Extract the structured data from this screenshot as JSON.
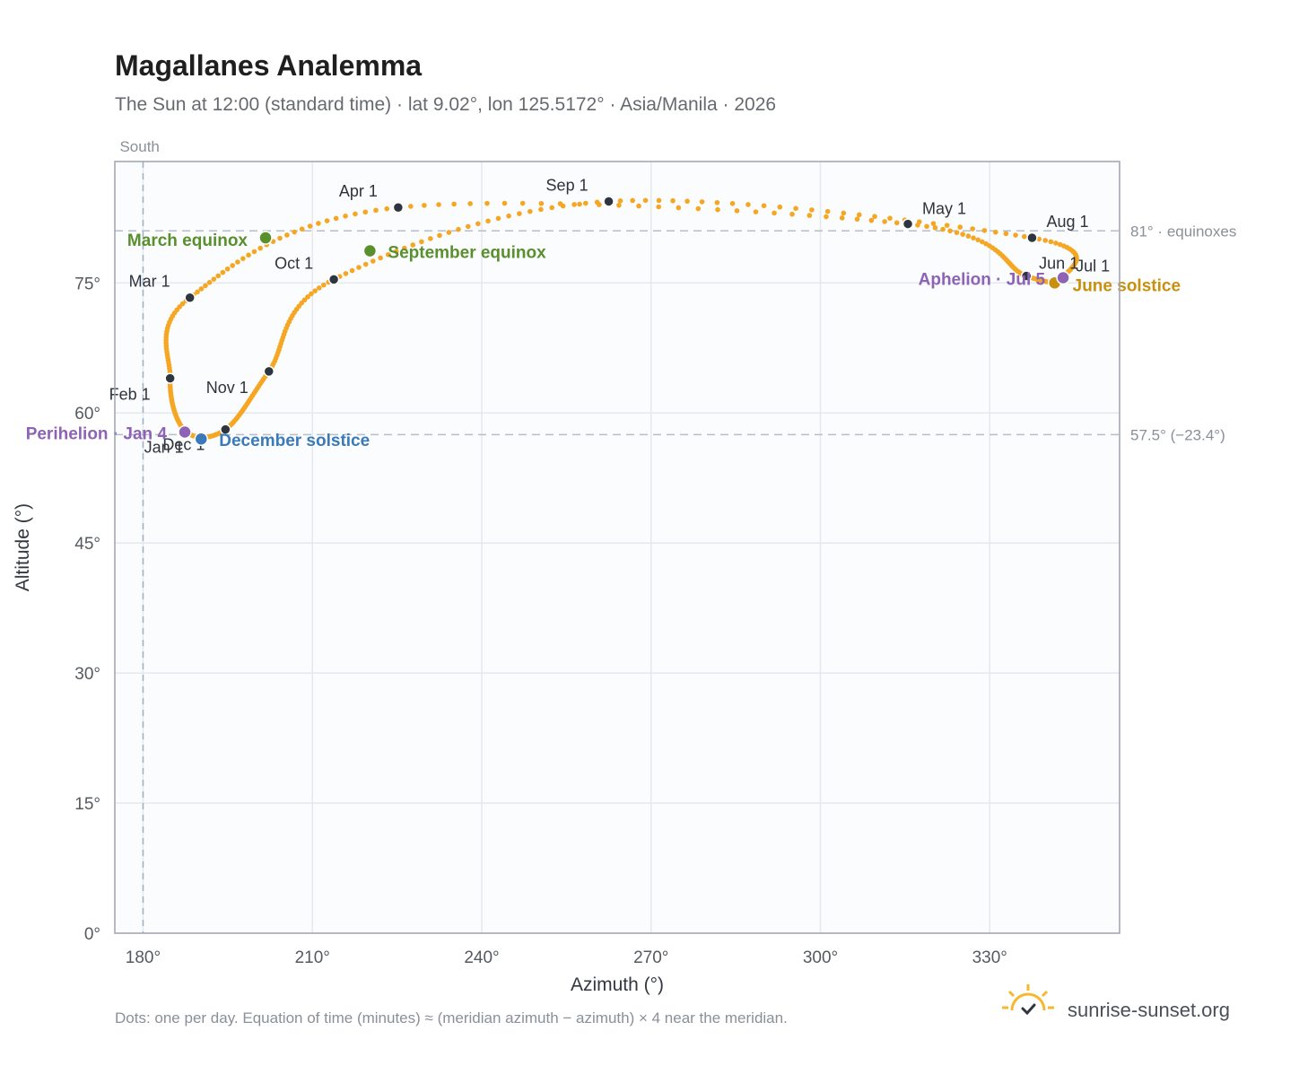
{
  "chart_data": {
    "type": "scatter",
    "title": "Magallanes Analemma",
    "subtitle": "The Sun at 12:00 (standard time) · lat 9.02°, lon 125.5172° · Asia/Manila · 2026",
    "xlabel": "Azimuth (°)",
    "ylabel": "Altitude (°)",
    "xlim": [
      175,
      353
    ],
    "ylim": [
      0,
      89
    ],
    "x_ticks": [
      {
        "value": 180,
        "label": "180°"
      },
      {
        "value": 210,
        "label": "210°"
      },
      {
        "value": 240,
        "label": "240°"
      },
      {
        "value": 270,
        "label": "270°"
      },
      {
        "value": 300,
        "label": "300°"
      },
      {
        "value": 330,
        "label": "330°"
      }
    ],
    "y_ticks": [
      {
        "value": 0,
        "label": "0°"
      },
      {
        "value": 15,
        "label": "15°"
      },
      {
        "value": 30,
        "label": "30°"
      },
      {
        "value": 45,
        "label": "45°"
      },
      {
        "value": 60,
        "label": "60°"
      },
      {
        "value": 75,
        "label": "75°"
      }
    ],
    "grid": true,
    "vertical_reference": {
      "x": 180,
      "label": "South"
    },
    "reference_lines": [
      {
        "y": 81,
        "label": "81° · equinoxes"
      },
      {
        "y": 57.5,
        "label": "57.5° (−23.4°)"
      }
    ],
    "colors": {
      "path": "#f5a623",
      "month_marker": "#2f3540",
      "equinox": "#5a8f2e",
      "june_solstice": "#c8900f",
      "december_solstice": "#3a7ab8",
      "apsis": "#8e63b5",
      "plot_bg": "#fafcfe",
      "grid": "#e4e9ef",
      "frame": "#9aa3b0"
    },
    "monthly_points": [
      {
        "label": "Jan 1",
        "az": 187.5,
        "alt": 57.9
      },
      {
        "label": "Feb 1",
        "az": 184.8,
        "alt": 64.0
      },
      {
        "label": "Mar 1",
        "az": 188.3,
        "alt": 73.3
      },
      {
        "label": "Apr 1",
        "az": 225.2,
        "alt": 83.7
      },
      {
        "label": "May 1",
        "az": 315.5,
        "alt": 81.8
      },
      {
        "label": "Jun 1",
        "az": 336.5,
        "alt": 75.8
      },
      {
        "label": "Jul 1",
        "az": 343.0,
        "alt": 75.6
      },
      {
        "label": "Aug 1",
        "az": 337.5,
        "alt": 80.2
      },
      {
        "label": "Sep 1",
        "az": 262.5,
        "alt": 84.4
      },
      {
        "label": "Oct 1",
        "az": 213.8,
        "alt": 75.4
      },
      {
        "label": "Nov 1",
        "az": 202.3,
        "alt": 64.8
      },
      {
        "label": "Dec 1",
        "az": 194.6,
        "alt": 58.1
      }
    ],
    "events": [
      {
        "label": "March equinox",
        "az": 201.7,
        "alt": 80.2,
        "kind": "equinox"
      },
      {
        "label": "September equinox",
        "az": 220.2,
        "alt": 78.7,
        "kind": "equinox"
      },
      {
        "label": "June solstice",
        "az": 341.5,
        "alt": 75.0,
        "kind": "june_solstice"
      },
      {
        "label": "December solstice",
        "az": 190.3,
        "alt": 57.0,
        "kind": "december_solstice"
      },
      {
        "label": "Perihelion · Jan 4",
        "az": 187.4,
        "alt": 57.8,
        "kind": "apsis"
      },
      {
        "label": "Aphelion · Jul 5",
        "az": 343.0,
        "alt": 75.6,
        "kind": "apsis"
      }
    ]
  },
  "footnote": "Dots: one per day. Equation of time (minutes) ≈ (meridian azimuth − azimuth) × 4 near the meridian.",
  "brand": {
    "name": "sunrise-sunset.org",
    "logo_icon": "sun-checkmark-icon"
  }
}
